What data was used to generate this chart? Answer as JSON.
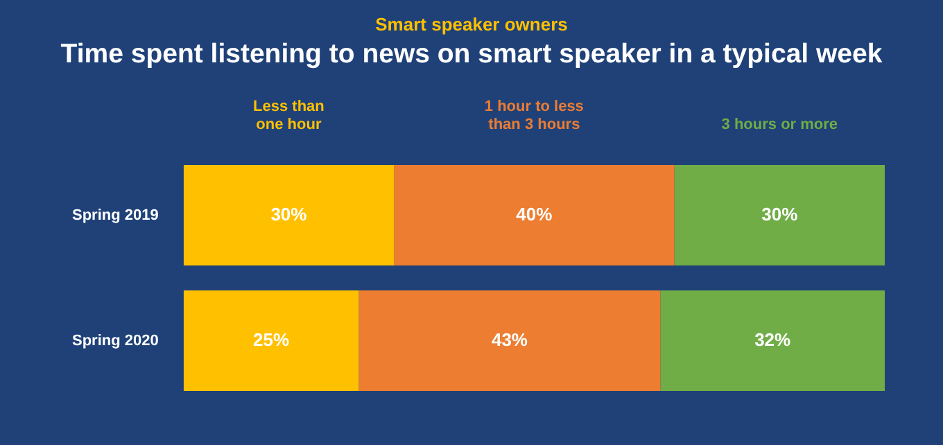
{
  "chart_data": {
    "type": "bar",
    "orientation": "horizontal",
    "stacked": true,
    "subtitle": "Smart speaker owners",
    "title": "Time spent listening to news on smart speaker in a typical week",
    "categories": [
      "Spring 2019",
      "Spring 2020"
    ],
    "series": [
      {
        "name": "Less than one hour",
        "color": "#ffc000",
        "values": [
          30,
          25
        ],
        "value_labels": [
          "30%",
          "25%"
        ]
      },
      {
        "name": "1 hour to less than 3 hours",
        "color": "#ed7d31",
        "values": [
          40,
          43
        ],
        "value_labels": [
          "40%",
          "43%"
        ]
      },
      {
        "name": "3 hours or more",
        "color": "#70ad47",
        "values": [
          30,
          32
        ],
        "value_labels": [
          "30%",
          "32%"
        ]
      }
    ],
    "tick_labels": "y",
    "legend": "top"
  }
}
